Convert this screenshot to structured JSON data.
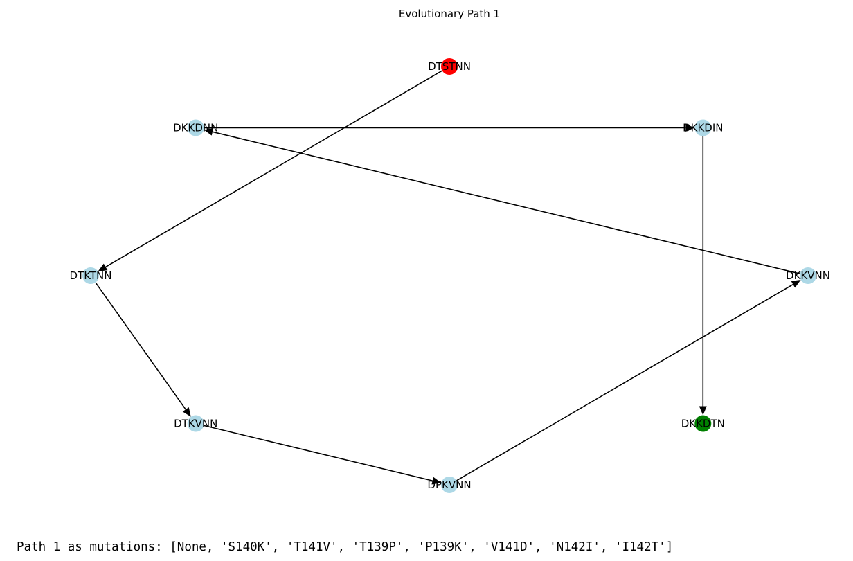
{
  "title": "Evolutionary Path 1",
  "colors": {
    "start": "#ff0000",
    "end": "#008000",
    "default": "#add8e6"
  },
  "nodes": [
    {
      "id": "DTSTNN",
      "label": "DTSTNN",
      "role": "start"
    },
    {
      "id": "DKKDIN",
      "label": "DKKDIN",
      "role": "default"
    },
    {
      "id": "DKKVNN",
      "label": "DKKVNN",
      "role": "default"
    },
    {
      "id": "DKKDTN",
      "label": "DKKDTN",
      "role": "end"
    },
    {
      "id": "DPKVNN",
      "label": "DPKVNN",
      "role": "default"
    },
    {
      "id": "DTKVNN",
      "label": "DTKVNN",
      "role": "default"
    },
    {
      "id": "DTKTNN",
      "label": "DTKTNN",
      "role": "default"
    },
    {
      "id": "DKKDNN",
      "label": "DKKDNN",
      "role": "default"
    }
  ],
  "edges": [
    {
      "from": "DTSTNN",
      "to": "DTKTNN"
    },
    {
      "from": "DTKTNN",
      "to": "DTKVNN"
    },
    {
      "from": "DTKVNN",
      "to": "DPKVNN"
    },
    {
      "from": "DPKVNN",
      "to": "DKKVNN"
    },
    {
      "from": "DKKVNN",
      "to": "DKKDNN"
    },
    {
      "from": "DKKDNN",
      "to": "DKKDIN"
    },
    {
      "from": "DKKDIN",
      "to": "DKKDTN"
    }
  ],
  "mutations_text": "Path 1 as mutations: [None, 'S140K', 'T141V', 'T139P', 'P139K', 'V141D', 'N142I', 'I142T']"
}
